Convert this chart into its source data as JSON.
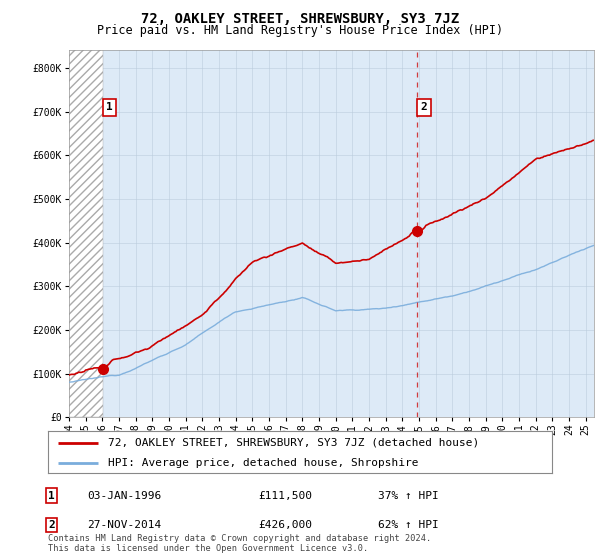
{
  "title": "72, OAKLEY STREET, SHREWSBURY, SY3 7JZ",
  "subtitle": "Price paid vs. HM Land Registry's House Price Index (HPI)",
  "ylim": [
    0,
    840000
  ],
  "yticks": [
    0,
    100000,
    200000,
    300000,
    400000,
    500000,
    600000,
    700000,
    800000
  ],
  "ytick_labels": [
    "£0",
    "£100K",
    "£200K",
    "£300K",
    "£400K",
    "£500K",
    "£600K",
    "£700K",
    "£800K"
  ],
  "house_color": "#cc0000",
  "hpi_color": "#7aaddc",
  "marker_color": "#cc0000",
  "dashed_color": "#cc0000",
  "annotation_box_color": "#cc0000",
  "background_color": "#ffffff",
  "plot_bg_color": "#ddeaf7",
  "legend_label_house": "72, OAKLEY STREET, SHREWSBURY, SY3 7JZ (detached house)",
  "legend_label_hpi": "HPI: Average price, detached house, Shropshire",
  "sale1_date": "03-JAN-1996",
  "sale1_price": 111500,
  "sale1_hpi_text": "37% ↑ HPI",
  "sale1_year": 1996.02,
  "sale2_date": "27-NOV-2014",
  "sale2_price": 426000,
  "sale2_hpi_text": "62% ↑ HPI",
  "sale2_year": 2014.9,
  "footnote": "Contains HM Land Registry data © Crown copyright and database right 2024.\nThis data is licensed under the Open Government Licence v3.0.",
  "xlim_start": 1994.0,
  "xlim_end": 2025.5,
  "title_fontsize": 10,
  "subtitle_fontsize": 8.5,
  "tick_fontsize": 7,
  "legend_fontsize": 8,
  "annotation_fontsize": 8
}
